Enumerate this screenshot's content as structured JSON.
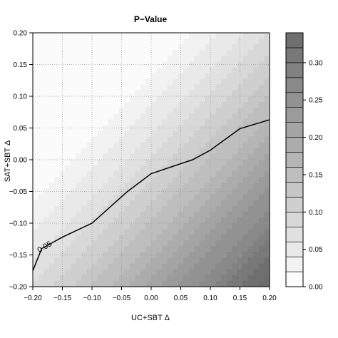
{
  "chart_data": {
    "type": "heatmap",
    "title": "P−Value",
    "xlabel": "UC+SBT Δ",
    "ylabel": "SAT+SBT Δ",
    "xlim": [
      -0.2,
      0.2
    ],
    "ylim": [
      -0.2,
      0.2
    ],
    "x_ticks": [
      "−0.20",
      "−0.15",
      "−0.10",
      "−0.05",
      "0.00",
      "0.05",
      "0.10",
      "0.15",
      "0.20"
    ],
    "y_ticks": [
      "−0.20",
      "−0.15",
      "−0.10",
      "−0.05",
      "0.00",
      "0.05",
      "0.10",
      "0.15",
      "0.20"
    ],
    "grid": true,
    "colorbar": {
      "min": 0,
      "max": 0.34,
      "step": 0.02,
      "ticks": [
        "0.00",
        "0.05",
        "0.10",
        "0.15",
        "0.20",
        "0.25",
        "0.30"
      ],
      "color_low": "#ffffff",
      "color_high": "#6b6b6b"
    },
    "contour": {
      "label": "0.05",
      "points": [
        [
          -0.2,
          -0.175
        ],
        [
          -0.185,
          -0.14
        ],
        [
          -0.15,
          -0.122
        ],
        [
          -0.1,
          -0.1
        ],
        [
          -0.04,
          -0.05
        ],
        [
          0.0,
          -0.022
        ],
        [
          0.07,
          0.0
        ],
        [
          0.1,
          0.015
        ],
        [
          0.15,
          0.049
        ],
        [
          0.2,
          0.063
        ]
      ]
    }
  }
}
